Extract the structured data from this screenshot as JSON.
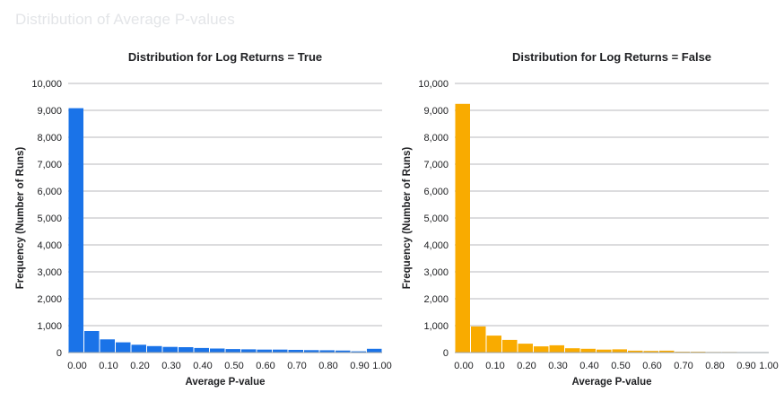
{
  "page": {
    "title": "Distribution of Average P-values"
  },
  "chart_data": [
    {
      "type": "bar",
      "title": "Distribution for Log Returns = True",
      "xlabel": "Average P-value",
      "ylabel": "Frequency (Number of Runs)",
      "color": "#1a73e8",
      "bin_width": 0.05,
      "xlim": [
        0,
        1
      ],
      "ylim": [
        0,
        10000
      ],
      "x_ticks": [
        "0.00",
        "0.10",
        "0.20",
        "0.30",
        "0.40",
        "0.50",
        "0.60",
        "0.70",
        "0.80",
        "0.90",
        "1.00"
      ],
      "y_ticks": [
        "0",
        "1,000",
        "2,000",
        "3,000",
        "4,000",
        "5,000",
        "6,000",
        "7,000",
        "8,000",
        "9,000",
        "10,000"
      ],
      "categories": [
        "0.00-0.05",
        "0.05-0.10",
        "0.10-0.15",
        "0.15-0.20",
        "0.20-0.25",
        "0.25-0.30",
        "0.30-0.35",
        "0.35-0.40",
        "0.40-0.45",
        "0.45-0.50",
        "0.50-0.55",
        "0.55-0.60",
        "0.60-0.65",
        "0.65-0.70",
        "0.70-0.75",
        "0.75-0.80",
        "0.80-0.85",
        "0.85-0.90",
        "0.90-0.95",
        "0.95-1.00"
      ],
      "values": [
        9080,
        800,
        490,
        380,
        290,
        240,
        210,
        200,
        170,
        150,
        130,
        120,
        110,
        110,
        100,
        90,
        85,
        75,
        45,
        140
      ],
      "grid": true
    },
    {
      "type": "bar",
      "title": "Distribution for Log Returns = False",
      "xlabel": "Average P-value",
      "ylabel": "Frequency (Number of Runs)",
      "color": "#f9ab00",
      "bin_width": 0.05,
      "xlim": [
        0,
        1
      ],
      "ylim": [
        0,
        10000
      ],
      "x_ticks": [
        "0.00",
        "0.10",
        "0.20",
        "0.30",
        "0.40",
        "0.50",
        "0.60",
        "0.70",
        "0.80",
        "0.90",
        "1.00"
      ],
      "y_ticks": [
        "0",
        "1,000",
        "2,000",
        "3,000",
        "4,000",
        "5,000",
        "6,000",
        "7,000",
        "8,000",
        "9,000",
        "10,000"
      ],
      "categories": [
        "0.00-0.05",
        "0.05-0.10",
        "0.10-0.15",
        "0.15-0.20",
        "0.20-0.25",
        "0.25-0.30",
        "0.30-0.35",
        "0.35-0.40",
        "0.40-0.45",
        "0.45-0.50",
        "0.50-0.55",
        "0.55-0.60",
        "0.60-0.65",
        "0.65-0.70",
        "0.70-0.75",
        "0.75-0.80",
        "0.80-0.85",
        "0.85-0.90",
        "0.90-0.95",
        "0.95-1.00"
      ],
      "values": [
        9240,
        970,
        630,
        470,
        330,
        230,
        270,
        160,
        140,
        110,
        120,
        70,
        60,
        70,
        30,
        30,
        20,
        20,
        10,
        10
      ],
      "grid": true
    }
  ]
}
